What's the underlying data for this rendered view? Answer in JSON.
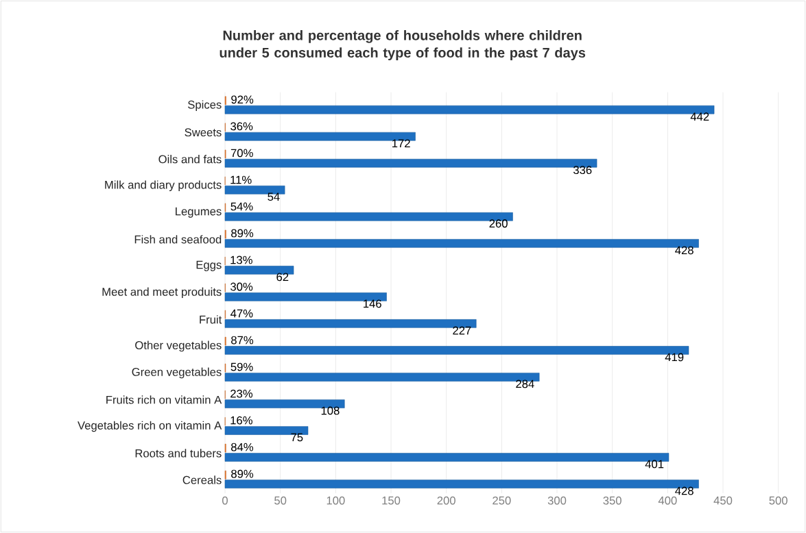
{
  "chart_data": {
    "type": "bar",
    "orientation": "horizontal",
    "title": "Number and percentage of households where children under 5 consumed each type of food in the past 7 days",
    "categories": [
      "Spices",
      "Sweets",
      "Oils and fats",
      "Milk and diary products",
      "Legumes",
      "Fish and seafood",
      "Eggs",
      "Meet and meet produits",
      "Fruit",
      "Other vegetables",
      "Green vegetables",
      "Fruits rich on vitamin A",
      "Vegetables rich on vitamin A",
      "Roots and tubers",
      "Cereals"
    ],
    "series": [
      {
        "color": "#ed7d31",
        "values": [
          0.92,
          0.36,
          0.7,
          0.11,
          0.54,
          0.89,
          0.13,
          0.3,
          0.47,
          0.87,
          0.59,
          0.23,
          0.16,
          0.84,
          0.89
        ],
        "value_labels": [
          "92%",
          "36%",
          "70%",
          "11%",
          "54%",
          "89%",
          "13%",
          "30%",
          "47%",
          "87%",
          "59%",
          "23%",
          "16%",
          "84%",
          "89%"
        ]
      },
      {
        "color": "#1f70c1",
        "values": [
          442,
          172,
          336,
          54,
          260,
          428,
          62,
          146,
          227,
          419,
          284,
          108,
          75,
          401,
          428
        ],
        "value_labels": [
          "442",
          "172",
          "336",
          "54",
          "260",
          "428",
          "62",
          "146",
          "227",
          "419",
          "284",
          "108",
          "75",
          "401",
          "428"
        ]
      }
    ],
    "xlim": [
      0,
      500
    ],
    "xticks": [
      0,
      50,
      100,
      150,
      200,
      250,
      300,
      350,
      400,
      450,
      500
    ],
    "grid": "x"
  }
}
